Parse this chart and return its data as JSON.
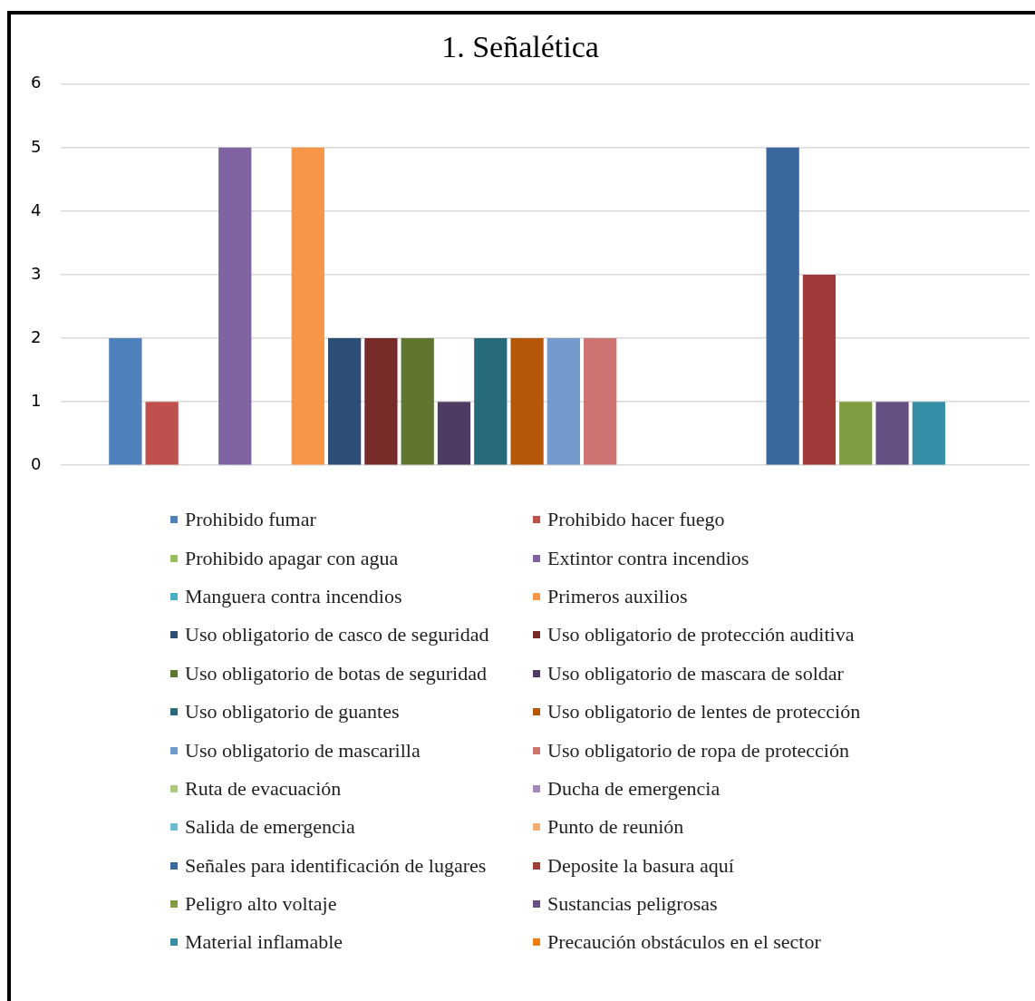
{
  "chart_data": {
    "type": "bar",
    "title": "1. Señalética",
    "categories": [
      null
    ],
    "series": [
      {
        "name": "Prohibido fumar",
        "color": "#4f81bd",
        "values": [
          2
        ]
      },
      {
        "name": "Prohibido hacer fuego",
        "color": "#c0504d",
        "values": [
          1
        ]
      },
      {
        "name": "Prohibido apagar con agua",
        "color": "#9bbb59",
        "values": [
          0
        ]
      },
      {
        "name": "Extintor contra incendios",
        "color": "#8064a2",
        "values": [
          5
        ]
      },
      {
        "name": "Manguera contra incendios",
        "color": "#4bacc6",
        "values": [
          0
        ]
      },
      {
        "name": "Primeros auxilios",
        "color": "#f79646",
        "values": [
          5
        ]
      },
      {
        "name": "Uso obligatorio de casco de seguridad",
        "color": "#2c4d75",
        "values": [
          2
        ]
      },
      {
        "name": "Uso obligatorio de protección auditiva",
        "color": "#772c2a",
        "values": [
          2
        ]
      },
      {
        "name": "Uso obligatorio de botas de seguridad",
        "color": "#5f7530",
        "values": [
          2
        ]
      },
      {
        "name": "Uso obligatorio de mascara de soldar",
        "color": "#4d3b62",
        "values": [
          1
        ]
      },
      {
        "name": "Uso obligatorio de guantes",
        "color": "#276a7c",
        "values": [
          2
        ]
      },
      {
        "name": "Uso obligatorio de lentes de protección",
        "color": "#b65708",
        "values": [
          2
        ]
      },
      {
        "name": "Uso obligatorio de mascarilla",
        "color": "#729aca",
        "values": [
          2
        ]
      },
      {
        "name": "Uso obligatorio de ropa de protección",
        "color": "#cd7371",
        "values": [
          2
        ]
      },
      {
        "name": "Ruta de evacuación",
        "color": "#afc97a",
        "values": [
          0
        ]
      },
      {
        "name": "Ducha de emergencia",
        "color": "#a08ab8",
        "values": [
          0
        ]
      },
      {
        "name": "Salida de emergencia",
        "color": "#6fbdd1",
        "values": [
          0
        ]
      },
      {
        "name": "Punto de reunión",
        "color": "#f9ab6b",
        "values": [
          0
        ]
      },
      {
        "name": "Señales para identificación de lugares",
        "color": "#3a679c",
        "values": [
          5
        ]
      },
      {
        "name": "Deposite la basura aquí",
        "color": "#9f3b38",
        "values": [
          3
        ]
      },
      {
        "name": "Peligro alto voltaje",
        "color": "#7e9d40",
        "values": [
          1
        ]
      },
      {
        "name": "Sustancias peligrosas",
        "color": "#664f83",
        "values": [
          1
        ]
      },
      {
        "name": "Material inflamable",
        "color": "#358ea6",
        "values": [
          1
        ]
      },
      {
        "name": "Precaución obstáculos en el sector",
        "color": "#f07f09",
        "values": [
          0
        ]
      }
    ],
    "ylim": [
      0,
      6
    ],
    "yticks": [
      0,
      1,
      2,
      3,
      4,
      5,
      6
    ],
    "grid": "y",
    "legend": "bottom"
  }
}
